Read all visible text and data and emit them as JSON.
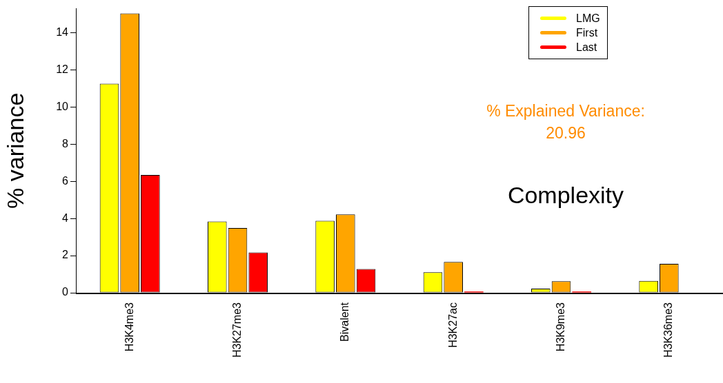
{
  "chart_data": {
    "type": "bar",
    "ylabel": "% variance",
    "categories": [
      "H3K4me3",
      "H3K27me3",
      "Bivalent",
      "H3K27ac",
      "H3K9me3",
      "H3K36me3"
    ],
    "series": [
      {
        "name": "LMG",
        "color": "#ffff00",
        "values": [
          11.26,
          3.84,
          3.88,
          1.1,
          0.22,
          0.64
        ]
      },
      {
        "name": "First",
        "color": "#ffa500",
        "values": [
          15.04,
          3.49,
          4.22,
          1.66,
          0.62,
          1.56
        ]
      },
      {
        "name": "Last",
        "color": "#ff0000",
        "values": [
          6.34,
          2.17,
          1.28,
          0.07,
          0.07,
          0
        ]
      }
    ],
    "ylim": [
      0,
      15.3
    ],
    "yticks": [
      0,
      2,
      4,
      6,
      8,
      10,
      12,
      14
    ],
    "annotations": [
      "% Explained Variance:\n20.96",
      "Complexity"
    ],
    "legend": "top right",
    "grid": false
  }
}
